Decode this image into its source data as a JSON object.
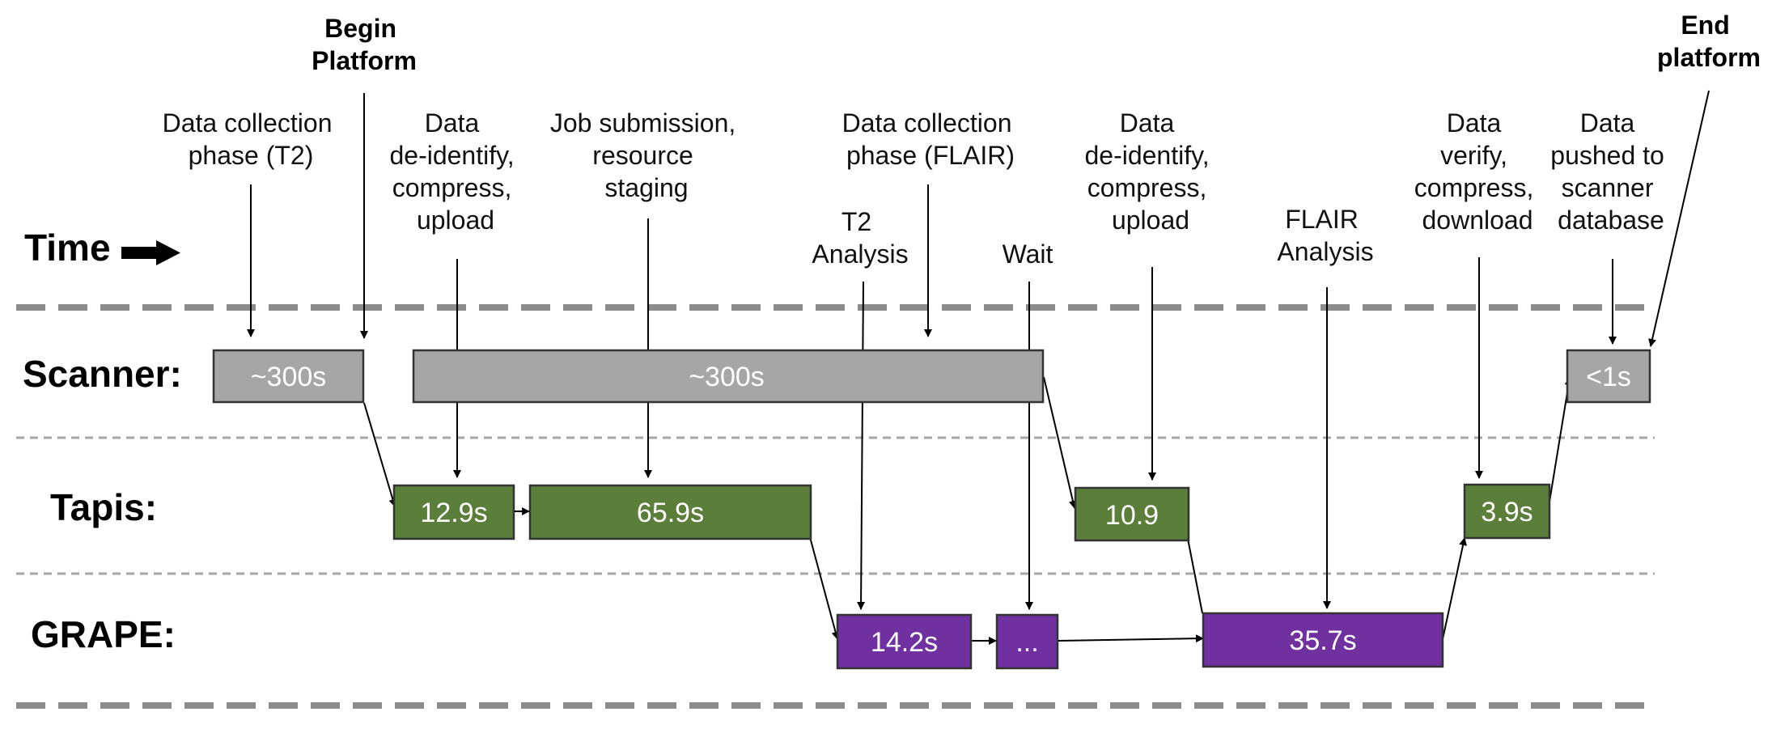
{
  "time_label": "Time",
  "begin_label": [
    "Begin",
    "Platform"
  ],
  "end_label": [
    "End",
    "platform"
  ],
  "rows": {
    "scanner": "Scanner:",
    "tapis": "Tapis:",
    "grape": "GRAPE:"
  },
  "colors": {
    "scanner": "#a6a6a6",
    "tapis": "#5b7f3a",
    "grape": "#7030a0",
    "heavy_dash": "#8c8c8c",
    "light_dash": "#a6a6a6"
  },
  "boxes": {
    "scanner_t2": "~300s",
    "scanner_flair": "~300s",
    "scanner_push": "<1s",
    "tapis_upload1": "12.9s",
    "tapis_job": "65.9s",
    "tapis_upload2": "10.9",
    "tapis_download": "3.9s",
    "grape_t2": "14.2s",
    "grape_wait": "...",
    "grape_flair": "35.7s"
  },
  "annotations": {
    "collect_t2": [
      "Data collection",
      "phase (T2)"
    ],
    "deidentify1": [
      "Data",
      "de-identify,",
      "compress,",
      "upload"
    ],
    "job_submission": [
      "Job submission,",
      "resource",
      "staging"
    ],
    "t2_analysis": [
      "T2",
      "Analysis"
    ],
    "collect_flair": [
      "Data collection",
      "phase (FLAIR)"
    ],
    "wait": [
      "Wait"
    ],
    "deidentify2": [
      "Data",
      "de-identify,",
      "compress,",
      "upload"
    ],
    "flair_analysis": [
      "FLAIR",
      "Analysis"
    ],
    "verify": [
      "Data",
      "verify,",
      "compress,",
      "download"
    ],
    "pushed": [
      "Data",
      "pushed to",
      "scanner",
      "database"
    ]
  }
}
